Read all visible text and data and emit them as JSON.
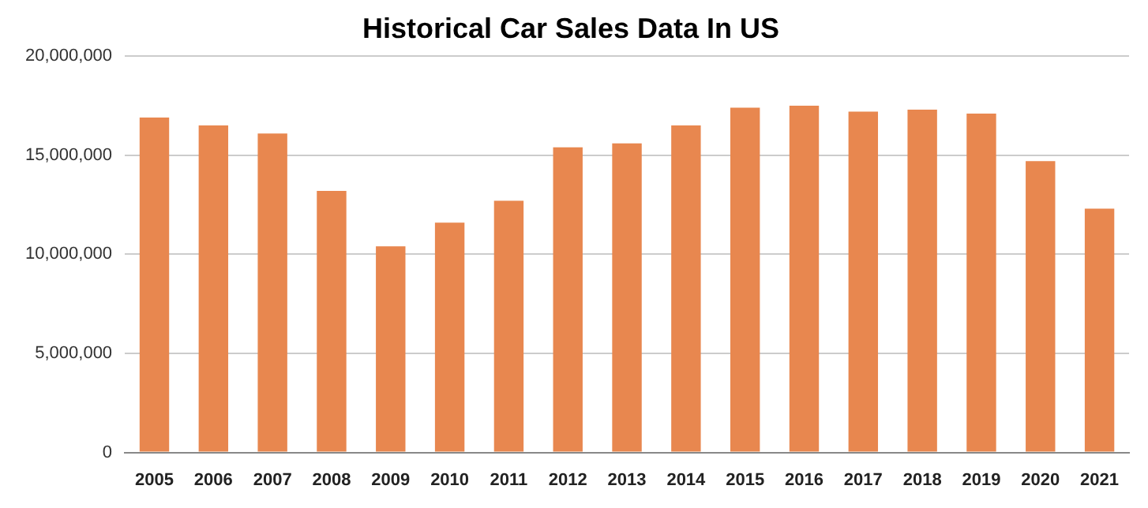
{
  "chart_data": {
    "type": "bar",
    "title": "Historical Car Sales Data In US",
    "categories": [
      "2005",
      "2006",
      "2007",
      "2008",
      "2009",
      "2010",
      "2011",
      "2012",
      "2013",
      "2014",
      "2015",
      "2016",
      "2017",
      "2018",
      "2019",
      "2020",
      "2021"
    ],
    "values": [
      16900000,
      16500000,
      16100000,
      13200000,
      10400000,
      11600000,
      12700000,
      15400000,
      15600000,
      16500000,
      17400000,
      17500000,
      17200000,
      17300000,
      17100000,
      14700000,
      12300000
    ],
    "color": "#e8874f",
    "ylim": [
      0,
      20000000
    ],
    "yticks": [
      0,
      {
        "value": 5000000,
        "label": "5,000,000"
      },
      {
        "value": 10000000,
        "label": "10,000,000"
      },
      {
        "value": 15000000,
        "label": "15,000,000"
      },
      {
        "value": 20000000,
        "label": "20,000,000"
      }
    ],
    "grid": "y"
  }
}
